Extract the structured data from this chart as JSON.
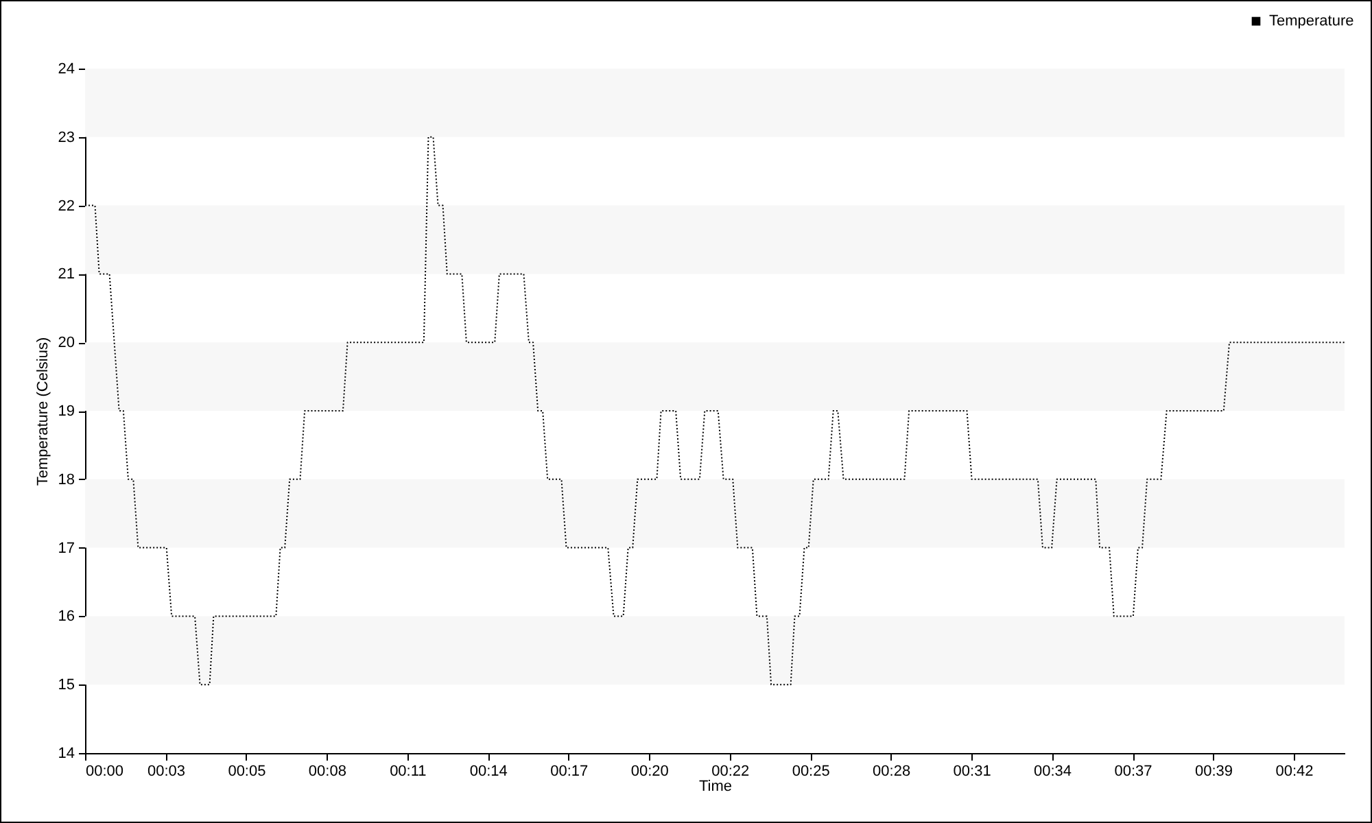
{
  "chart_data": {
    "type": "line",
    "xlabel": "Time",
    "ylabel": "Temperature (Celsius)",
    "xlim": [
      -0.3,
      44.09
    ],
    "xticks": [
      {
        "value": -0.3,
        "label": "00:00"
      },
      {
        "value": 2.54,
        "label": "00:03"
      },
      {
        "value": 5.38,
        "label": "00:05"
      },
      {
        "value": 8.22,
        "label": "00:08"
      },
      {
        "value": 11.06,
        "label": "00:11"
      },
      {
        "value": 13.9,
        "label": "00:14"
      },
      {
        "value": 16.74,
        "label": "00:17"
      },
      {
        "value": 19.58,
        "label": "00:20"
      },
      {
        "value": 22.42,
        "label": "00:22"
      },
      {
        "value": 25.26,
        "label": "00:25"
      },
      {
        "value": 28.1,
        "label": "00:28"
      },
      {
        "value": 30.94,
        "label": "00:31"
      },
      {
        "value": 33.78,
        "label": "00:34"
      },
      {
        "value": 36.62,
        "label": "00:37"
      },
      {
        "value": 39.46,
        "label": "00:39"
      },
      {
        "value": 42.3,
        "label": "00:42"
      }
    ],
    "ylim": [
      14,
      24
    ],
    "yticks": [
      14,
      15,
      16,
      17,
      18,
      19,
      20,
      21,
      22,
      23,
      24
    ],
    "bands": [
      {
        "axis": "y",
        "from": 15,
        "to": 16,
        "color": "#f7f7f7"
      },
      {
        "axis": "y",
        "from": 17,
        "to": 18,
        "color": "#f7f7f7"
      },
      {
        "axis": "y",
        "from": 19,
        "to": 20,
        "color": "#f7f7f7"
      },
      {
        "axis": "y",
        "from": 21,
        "to": 22,
        "color": "#f7f7f7"
      },
      {
        "axis": "y",
        "from": 23,
        "to": 24,
        "color": "#f7f7f7"
      }
    ],
    "grid": false,
    "legend": "top right",
    "marker": "none",
    "line_style": "dotted",
    "x": [
      -0.3,
      0.05,
      0.2,
      0.56,
      0.9,
      1.05,
      1.22,
      1.4,
      1.57,
      2.57,
      2.75,
      3.57,
      3.75,
      4.09,
      4.23,
      6.43,
      6.58,
      6.74,
      6.91,
      7.28,
      7.44,
      8.79,
      8.95,
      11.64,
      11.8,
      11.97,
      12.14,
      12.31,
      12.46,
      12.98,
      13.14,
      14.14,
      14.3,
      15.16,
      15.34,
      15.49,
      15.66,
      15.83,
      16.0,
      16.49,
      16.66,
      18.13,
      18.33,
      18.67,
      18.84,
      19.0,
      19.17,
      19.85,
      20.0,
      20.52,
      20.69,
      21.36,
      21.54,
      22.01,
      22.2,
      22.53,
      22.7,
      23.22,
      23.38,
      23.73,
      23.88,
      24.57,
      24.71,
      24.88,
      25.05,
      25.2,
      25.37,
      25.9,
      26.07,
      26.23,
      26.43,
      28.58,
      28.74,
      30.78,
      30.95,
      33.28,
      33.45,
      33.77,
      33.95,
      35.32,
      35.46,
      35.8,
      35.96,
      36.64,
      36.81,
      36.96,
      37.13,
      37.62,
      37.82,
      39.83,
      40.03,
      44.09
    ],
    "series": [
      {
        "name": "Temperature",
        "color": "#000000",
        "values": [
          22,
          22,
          21,
          21,
          19,
          19,
          18,
          18,
          17,
          17,
          16,
          16,
          15,
          15,
          16,
          16,
          17,
          17,
          18,
          18,
          19,
          19,
          20,
          20,
          23,
          23,
          22,
          22,
          21,
          21,
          20,
          20,
          21,
          21,
          20,
          20,
          19,
          19,
          18,
          18,
          17,
          17,
          16,
          16,
          17,
          17,
          18,
          18,
          19,
          19,
          18,
          18,
          19,
          19,
          18,
          18,
          17,
          17,
          16,
          16,
          15,
          15,
          16,
          16,
          17,
          17,
          18,
          18,
          19,
          19,
          18,
          18,
          19,
          19,
          18,
          18,
          17,
          17,
          18,
          18,
          17,
          17,
          16,
          16,
          17,
          17,
          18,
          18,
          19,
          19,
          20,
          20
        ]
      }
    ]
  }
}
